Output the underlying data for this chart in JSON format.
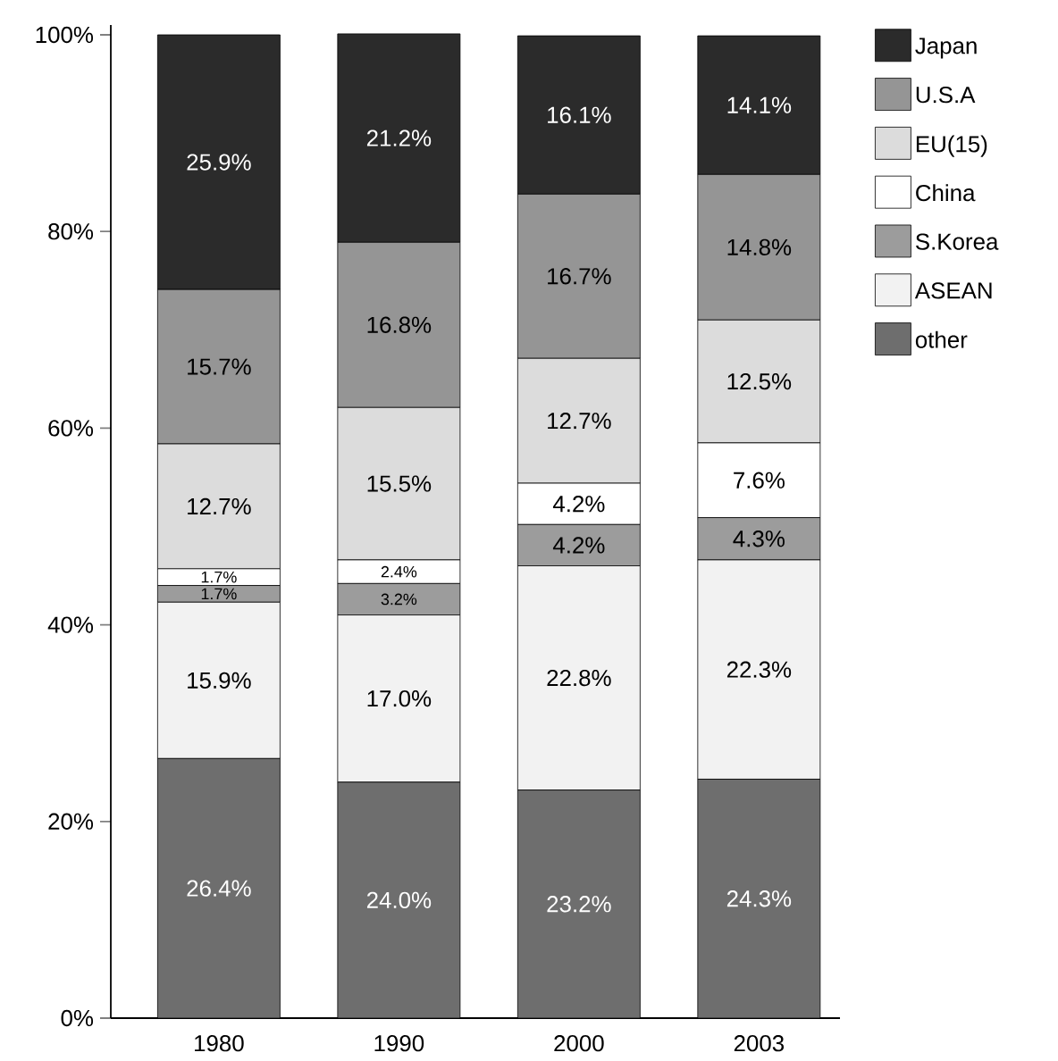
{
  "chart_data": {
    "type": "bar",
    "stacked": true,
    "categories": [
      "1980",
      "1990",
      "2000",
      "2003"
    ],
    "series": [
      {
        "name": "other",
        "color": "#6e6e6e",
        "values": [
          26.4,
          24.0,
          23.2,
          24.3
        ],
        "value_labels": [
          "26.4%",
          "24.0%",
          "23.2%",
          "24.3%"
        ]
      },
      {
        "name": "ASEAN",
        "color": "#f2f2f2",
        "values": [
          15.9,
          17.0,
          22.8,
          22.3
        ],
        "value_labels": [
          "15.9%",
          "17.0%",
          "22.8%",
          "22.3%"
        ]
      },
      {
        "name": "S.Korea",
        "color": "#9c9c9c",
        "values": [
          1.7,
          3.2,
          4.2,
          4.3
        ],
        "value_labels": [
          "1.7%",
          "3.2%",
          "4.2%",
          "4.3%"
        ]
      },
      {
        "name": "China",
        "color": "#ffffff",
        "values": [
          1.7,
          2.4,
          4.2,
          7.6
        ],
        "value_labels": [
          "1.7%",
          "2.4%",
          "4.2%",
          "7.6%"
        ]
      },
      {
        "name": "EU(15)",
        "color": "#dcdcdc",
        "values": [
          12.7,
          15.5,
          12.7,
          12.5
        ],
        "value_labels": [
          "12.7%",
          "15.5%",
          "12.7%",
          "12.5%"
        ]
      },
      {
        "name": "U.S.A",
        "color": "#959595",
        "values": [
          15.7,
          16.8,
          16.7,
          14.8
        ],
        "value_labels": [
          "15.7%",
          "16.8%",
          "16.7%",
          "14.8%"
        ]
      },
      {
        "name": "Japan",
        "color": "#2b2b2b",
        "values": [
          25.9,
          21.2,
          16.1,
          14.1
        ],
        "value_labels": [
          "25.9%",
          "21.2%",
          "16.1%",
          "14.1%"
        ]
      }
    ],
    "ylim": [
      0,
      101
    ],
    "yticks": [
      {
        "value": 0,
        "label": "0%"
      },
      {
        "value": 20,
        "label": "20%"
      },
      {
        "value": 40,
        "label": "40%"
      },
      {
        "value": 60,
        "label": "60%"
      },
      {
        "value": 80,
        "label": "80%"
      },
      {
        "value": 100,
        "label": "100%"
      }
    ],
    "legend": "top right",
    "grid": false
  }
}
